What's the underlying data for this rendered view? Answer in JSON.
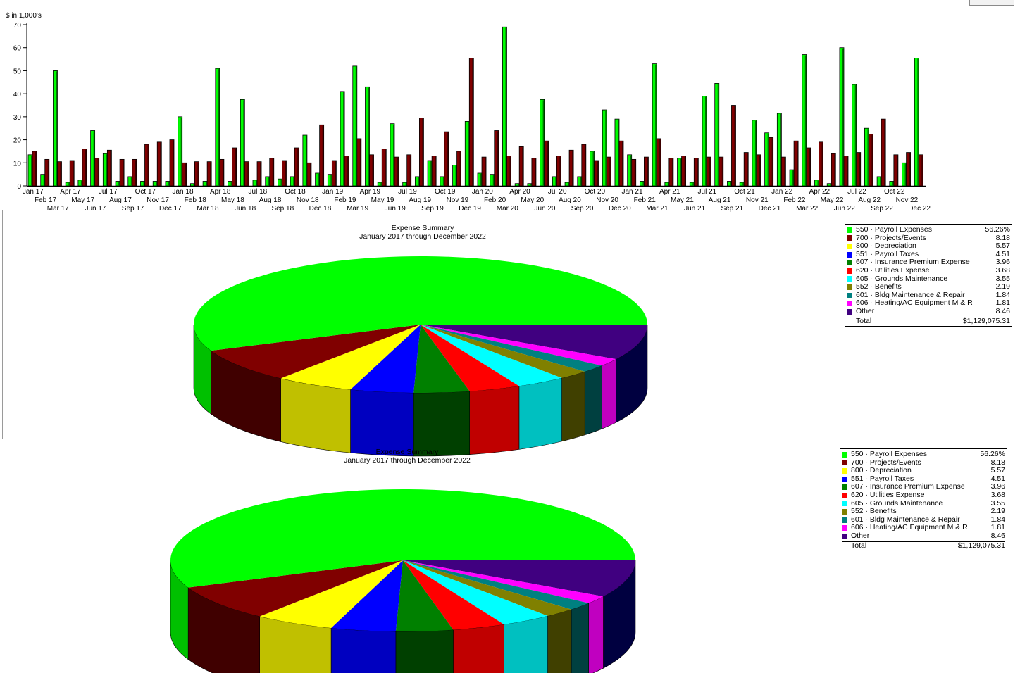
{
  "chart_data": [
    {
      "type": "bar",
      "title": "",
      "ylabel": "$ in 1,000's",
      "xlabel": "",
      "ylim": [
        0,
        70
      ],
      "yticks": [
        0,
        10,
        20,
        30,
        40,
        50,
        60,
        70
      ],
      "categories": [
        "Jan 17",
        "Feb 17",
        "Mar 17",
        "Apr 17",
        "May 17",
        "Jun 17",
        "Jul 17",
        "Aug 17",
        "Sep 17",
        "Oct 17",
        "Nov 17",
        "Dec 17",
        "Jan 18",
        "Feb 18",
        "Mar 18",
        "Apr 18",
        "May 18",
        "Jun 18",
        "Jul 18",
        "Aug 18",
        "Sep 18",
        "Oct 18",
        "Nov 18",
        "Dec 18",
        "Jan 19",
        "Feb 19",
        "Mar 19",
        "Apr 19",
        "May 19",
        "Jun 19",
        "Jul 19",
        "Aug 19",
        "Sep 19",
        "Oct 19",
        "Nov 19",
        "Dec 19",
        "Jan 20",
        "Feb 20",
        "Mar 20",
        "Apr 20",
        "May 20",
        "Jun 20",
        "Jul 20",
        "Aug 20",
        "Sep 20",
        "Oct 20",
        "Nov 20",
        "Dec 20",
        "Jan 21",
        "Feb 21",
        "Mar 21",
        "Apr 21",
        "May 21",
        "Jun 21",
        "Jul 21",
        "Aug 21",
        "Sep 21",
        "Oct 21",
        "Nov 21",
        "Dec 21",
        "Jan 22",
        "Feb 22",
        "Mar 22",
        "Apr 22",
        "May 22",
        "Jun 22",
        "Jul 22",
        "Aug 22",
        "Sep 22",
        "Oct 22",
        "Nov 22",
        "Dec 22"
      ],
      "series": [
        {
          "color": "#00ff00",
          "values": [
            13.5,
            5,
            50,
            1.5,
            2.5,
            24,
            14,
            2,
            4,
            2,
            2,
            2,
            30,
            1,
            2,
            51,
            2,
            37.5,
            2.5,
            4,
            3,
            4,
            22,
            5.5,
            5,
            41,
            52,
            43,
            1.5,
            27,
            1.5,
            4,
            11,
            4,
            9,
            28,
            5.5,
            5,
            69,
            1,
            1,
            37.5,
            4,
            1.5,
            4,
            15,
            33,
            29,
            13.5,
            2,
            53,
            1.5,
            12,
            1.5,
            39,
            44.5,
            2,
            1.5,
            28.5,
            23,
            31.5,
            7,
            57,
            2.5,
            1,
            60,
            44,
            25,
            4,
            2,
            10,
            55.5
          ]
        },
        {
          "color": "#800000",
          "values": [
            15,
            11.5,
            10.5,
            11,
            16,
            12,
            15.5,
            11.5,
            11.5,
            18,
            19,
            20,
            10,
            10.5,
            10.5,
            11.5,
            16.5,
            10.5,
            10.5,
            12,
            11,
            16.5,
            10,
            26.5,
            11,
            13,
            20.5,
            13.5,
            16,
            12.5,
            13.5,
            29.5,
            13,
            23.5,
            15,
            55.5,
            12.5,
            24,
            13,
            17,
            12,
            19.5,
            13,
            15.5,
            18,
            11,
            12.5,
            19.5,
            11.5,
            12.5,
            20.5,
            12,
            13,
            12,
            12.5,
            12.5,
            35,
            14.5,
            13.5,
            21,
            12.5,
            19.5,
            16.5,
            19,
            14,
            13,
            14.5,
            22.5,
            29,
            13.5,
            14.5,
            13.5
          ]
        }
      ]
    },
    {
      "type": "pie",
      "title": "Expense Summary",
      "subtitle": "January 2017 through December 2022",
      "labels": [
        "550 · Payroll Expenses",
        "700 · Projects/Events",
        "800 · Depreciation",
        "551 · Payroll Taxes",
        "607 · Insurance Premium Expense",
        "620 · Utilities Expense",
        "605 · Grounds Maintenance",
        "552 · Benefits",
        "601 · Bldg Maintenance & Repair",
        "606 · Heating/AC Equipment M & R",
        "Other"
      ],
      "values": [
        56.26,
        8.18,
        5.57,
        4.51,
        3.96,
        3.68,
        3.55,
        2.19,
        1.84,
        1.81,
        8.46
      ],
      "value_labels": [
        "56.26%",
        "8.18",
        "5.57",
        "4.51",
        "3.96",
        "3.68",
        "3.55",
        "2.19",
        "1.84",
        "1.81",
        "8.46"
      ],
      "colors": [
        "#00ff00",
        "#800000",
        "#ffff00",
        "#0000ff",
        "#008000",
        "#ff0000",
        "#00ffff",
        "#808000",
        "#008080",
        "#ff00ff",
        "#400080"
      ],
      "side_colors": [
        "#00c000",
        "#400000",
        "#c0c000",
        "#0000c0",
        "#004000",
        "#c00000",
        "#00c0c0",
        "#404000",
        "#004040",
        "#c000c0",
        "#000040"
      ],
      "total_label": "Total",
      "total_value": "$1,129,075.31"
    },
    {
      "type": "pie",
      "title": "Expense Summary",
      "subtitle": "January 2017 through December 2022",
      "labels": [
        "550 · Payroll Expenses",
        "700 · Projects/Events",
        "800 · Depreciation",
        "551 · Payroll Taxes",
        "607 · Insurance Premium Expense",
        "620 · Utilities Expense",
        "605 · Grounds Maintenance",
        "552 · Benefits",
        "601 · Bldg Maintenance & Repair",
        "606 · Heating/AC Equipment M & R",
        "Other"
      ],
      "values": [
        56.26,
        8.18,
        5.57,
        4.51,
        3.96,
        3.68,
        3.55,
        2.19,
        1.84,
        1.81,
        8.46
      ],
      "value_labels": [
        "56.26%",
        "8.18",
        "5.57",
        "4.51",
        "3.96",
        "3.68",
        "3.55",
        "2.19",
        "1.84",
        "1.81",
        "8.46"
      ],
      "colors": [
        "#00ff00",
        "#800000",
        "#ffff00",
        "#0000ff",
        "#008000",
        "#ff0000",
        "#00ffff",
        "#808000",
        "#008080",
        "#ff00ff",
        "#400080"
      ],
      "side_colors": [
        "#00c000",
        "#400000",
        "#c0c000",
        "#0000c0",
        "#004000",
        "#c00000",
        "#00c0c0",
        "#404000",
        "#004040",
        "#c000c0",
        "#000040"
      ],
      "total_label": "Total",
      "total_value": "$1,129,075.31"
    }
  ]
}
